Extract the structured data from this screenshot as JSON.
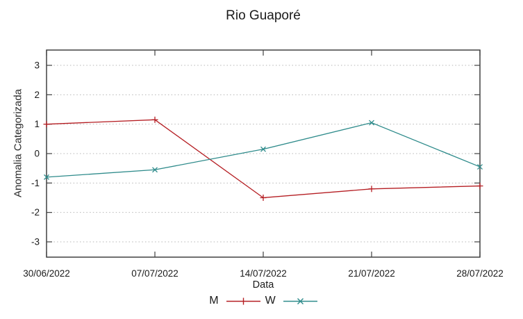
{
  "title": "Rio Guaporé",
  "colors": {
    "background": "#ffffff",
    "axis": "#404040",
    "grid": "#b5b5b5",
    "text": "#1a1a1a",
    "series_m": "#b51d22",
    "series_w": "#2e8b8b"
  },
  "chart_data": {
    "type": "line",
    "title": "Rio Guaporé",
    "xlabel": "Data",
    "ylabel": "Anomalia Categorizada",
    "categories": [
      "30/06/2022",
      "07/07/2022",
      "14/07/2022",
      "21/07/2022",
      "28/07/2022"
    ],
    "series": [
      {
        "name": "M",
        "color": "#b51d22",
        "marker": "plus",
        "values": [
          1.0,
          1.15,
          -1.5,
          -1.2,
          -1.1
        ]
      },
      {
        "name": "W",
        "color": "#2e8b8b",
        "marker": "cross",
        "values": [
          -0.8,
          -0.55,
          0.15,
          1.05,
          -0.45
        ]
      }
    ],
    "yticks": [
      -3,
      -2,
      -1,
      0,
      1,
      2,
      3
    ],
    "ylim": [
      -3.5,
      3.5
    ],
    "grid": "horizontal-dotted",
    "legend_position": "bottom-center"
  }
}
